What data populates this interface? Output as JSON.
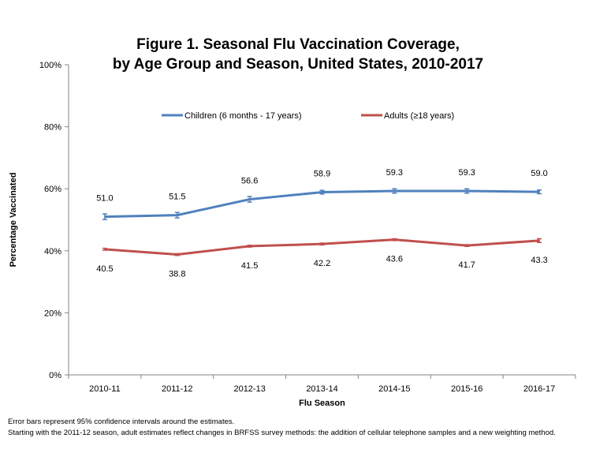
{
  "chart_data": {
    "type": "line",
    "title_line1": "Figure 1. Seasonal Flu Vaccination Coverage,",
    "title_line2": "by Age Group and Season, United States, 2010-2017",
    "xlabel": "Flu Season",
    "ylabel": "Percentage Vaccinated",
    "categories": [
      "2010-11",
      "2011-12",
      "2012-13",
      "2013-14",
      "2014-15",
      "2015-16",
      "2016-17"
    ],
    "ylim": [
      0,
      100
    ],
    "yticks": [
      0,
      20,
      40,
      60,
      80,
      100
    ],
    "ytick_labels": [
      "0%",
      "20%",
      "40%",
      "60%",
      "80%",
      "100%"
    ],
    "grid": false,
    "legend_placement": "top",
    "series": [
      {
        "name": "Children (6 months - 17 years)",
        "color": "#4f81bd",
        "values": [
          51.0,
          51.5,
          56.6,
          58.9,
          59.3,
          59.3,
          59.0
        ],
        "labels": [
          "51.0",
          "51.5",
          "56.6",
          "58.9",
          "59.3",
          "59.3",
          "59.0"
        ],
        "ci_halfwidth": [
          0.9,
          0.9,
          0.9,
          0.6,
          0.7,
          0.7,
          0.6
        ],
        "label_position": "above"
      },
      {
        "name": "Adults (≥18 years)",
        "color": "#c0504d",
        "values": [
          40.5,
          38.8,
          41.5,
          42.2,
          43.6,
          41.7,
          43.3
        ],
        "labels": [
          "40.5",
          "38.8",
          "41.5",
          "42.2",
          "43.6",
          "41.7",
          "43.3"
        ],
        "ci_halfwidth": [
          0.3,
          0.3,
          0.3,
          0.3,
          0.3,
          0.3,
          0.6
        ],
        "label_position": "below"
      }
    ]
  },
  "notes": [
    "Error bars represent 95% confidence intervals around the estimates.",
    "Starting with the 2011-12 season, adult estimates reflect changes in BRFSS survey methods: the addition of cellular telephone samples and a new weighting method."
  ]
}
